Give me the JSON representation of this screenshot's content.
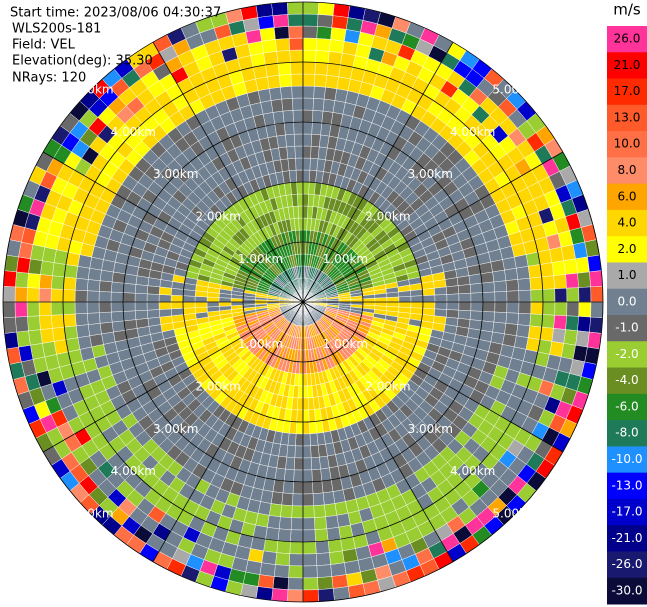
{
  "info": {
    "start_time": "Start time: 2023/08/06 04:30:37",
    "instrument": "WLS200s-181",
    "field": "Field: VEL",
    "elevation": "Elevation(deg): 35.30",
    "nrays": "NRays: 120"
  },
  "colorbar": {
    "unit": "m/s",
    "levels": [
      {
        "label": "26.0",
        "color": "#ff3399"
      },
      {
        "label": "21.0",
        "color": "#ff0000"
      },
      {
        "label": "17.0",
        "color": "#ff2a00"
      },
      {
        "label": "13.0",
        "color": "#ff5a2a"
      },
      {
        "label": "10.0",
        "color": "#ff7046"
      },
      {
        "label": "8.0",
        "color": "#ff8c69"
      },
      {
        "label": "6.0",
        "color": "#ffa500"
      },
      {
        "label": "4.0",
        "color": "#ffd700"
      },
      {
        "label": "2.0",
        "color": "#ffff00"
      },
      {
        "label": "1.0",
        "color": "#a9a9a9"
      },
      {
        "label": "0.0",
        "color": "#708090"
      },
      {
        "label": "-1.0",
        "color": "#696969"
      },
      {
        "label": "-2.0",
        "color": "#9acd32"
      },
      {
        "label": "-4.0",
        "color": "#6b8e23"
      },
      {
        "label": "-6.0",
        "color": "#228b22"
      },
      {
        "label": "-8.0",
        "color": "#1f7a5a"
      },
      {
        "label": "-10.0",
        "color": "#1e90ff"
      },
      {
        "label": "-13.0",
        "color": "#0000ff"
      },
      {
        "label": "-17.0",
        "color": "#0000cd"
      },
      {
        "label": "-21.0",
        "color": "#00008b"
      },
      {
        "label": "-26.0",
        "color": "#191970"
      },
      {
        "label": "-30.0",
        "color": "#0b0b3a"
      }
    ]
  },
  "range_rings": [
    "1.00km",
    "2.00km",
    "3.00km",
    "4.00km",
    "5.00km"
  ]
}
